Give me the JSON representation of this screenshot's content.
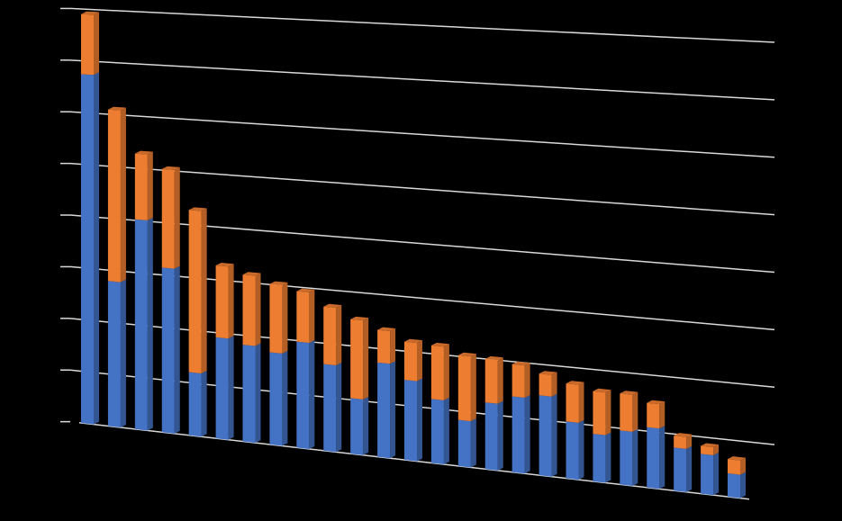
{
  "chart_data": {
    "type": "bar",
    "stacked": true,
    "categories": [
      null,
      null,
      null,
      null,
      null,
      null,
      null,
      null,
      null,
      null,
      null,
      null,
      null,
      null,
      null,
      null,
      null,
      null,
      null,
      null,
      null,
      null,
      null,
      null,
      null
    ],
    "series": [
      {
        "name": null,
        "color": "#4472c4",
        "values": [
          6.74,
          2.79,
          4.02,
          3.14,
          1.2,
          1.91,
          1.82,
          1.73,
          1.98,
          1.61,
          1.03,
          1.74,
          1.47,
          1.17,
          0.84,
          1.21,
          1.37,
          1.44,
          1.02,
          0.85,
          0.96,
          1.07,
          0.76,
          0.7,
          0.41
        ]
      },
      {
        "name": null,
        "color": "#ed7d31",
        "values": [
          1.16,
          3.3,
          1.26,
          1.88,
          3.08,
          1.36,
          1.32,
          1.28,
          0.94,
          1.07,
          1.46,
          0.6,
          0.7,
          0.98,
          1.18,
          0.79,
          0.58,
          0.39,
          0.68,
          0.76,
          0.66,
          0.43,
          0.21,
          0.14,
          0.25
        ]
      }
    ],
    "ylim": [
      0,
      8
    ],
    "yticks": [
      0,
      1,
      2,
      3,
      4,
      5,
      6,
      7,
      8
    ],
    "grid": true
  }
}
